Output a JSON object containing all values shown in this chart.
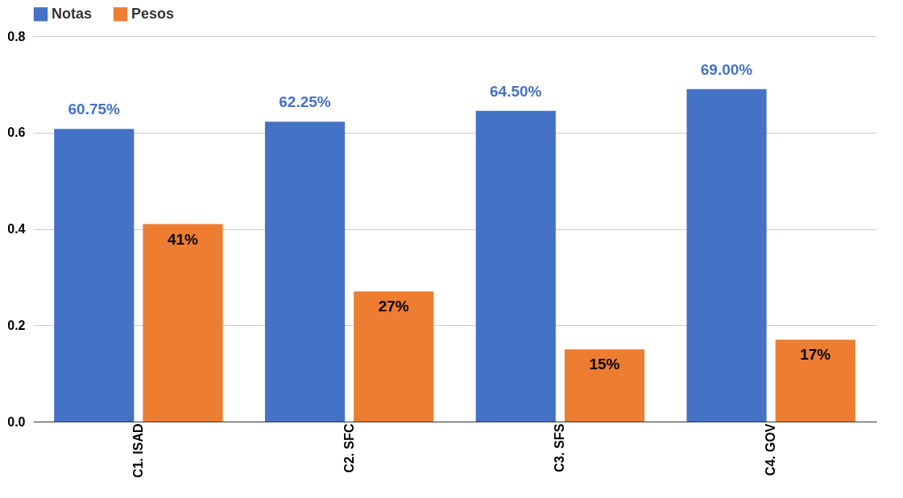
{
  "chart_data": {
    "type": "bar",
    "categories": [
      "C1. ISAD",
      "C2. SFC",
      "C3. SFS",
      "C4. GOV"
    ],
    "series": [
      {
        "name": "Notas",
        "color": "#4472c4",
        "values": [
          0.6075,
          0.6225,
          0.645,
          0.69
        ],
        "value_labels": [
          "60.75%",
          "62.25%",
          "64.50%",
          "69.00%"
        ]
      },
      {
        "name": "Pesos",
        "color": "#ed7d31",
        "values": [
          0.41,
          0.27,
          0.15,
          0.17
        ],
        "value_labels": [
          "41%",
          "27%",
          "15%",
          "17%"
        ]
      }
    ],
    "ylim": [
      0,
      0.8
    ],
    "yticks": [
      {
        "value": 0,
        "label": "0.0"
      },
      {
        "value": 0.2,
        "label": "0.2"
      },
      {
        "value": 0.4,
        "label": "0.4"
      },
      {
        "value": 0.6,
        "label": "0.6"
      },
      {
        "value": 0.8,
        "label": "0.8"
      }
    ],
    "grid": "y",
    "legend": "top"
  }
}
